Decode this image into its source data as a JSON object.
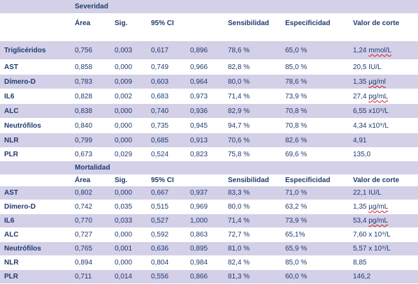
{
  "sections": [
    {
      "title": "Severidad",
      "headers": [
        "Área",
        "Sig.",
        "95% CI",
        "Sensibilidad",
        "Especificidad",
        "Valor de corte"
      ],
      "rows": [
        {
          "label": "Triglicéridos",
          "area": "0,756",
          "sig": "0,003",
          "ci_low": "0,617",
          "ci_high": "0,896",
          "sens": "78,6 %",
          "spec": "65,0 %",
          "cutoff": "1,24 mmol/L"
        },
        {
          "label": "AST",
          "area": "0,858",
          "sig": "0,000",
          "ci_low": "0,749",
          "ci_high": "0,966",
          "sens": "82,8 %",
          "spec": "85,0 %",
          "cutoff": "20,5 IU/L"
        },
        {
          "label": "Dímero-D",
          "area": "0,783",
          "sig": "0,009",
          "ci_low": "0,603",
          "ci_high": "0,964",
          "sens": "80,0 %",
          "spec": "78,6 %",
          "cutoff": "1,35 µg/ml"
        },
        {
          "label": "IL6",
          "area": "0,828",
          "sig": "0,002",
          "ci_low": "0,683",
          "ci_high": "0,973",
          "sens": "71,4 %",
          "spec": "73,9 %",
          "cutoff": "27,4 pg/mL"
        },
        {
          "label": "ALC",
          "area": "0,838",
          "sig": "0,000",
          "ci_low": "0,740",
          "ci_high": "0,936",
          "sens": "82,9 %",
          "spec": "70,8 %",
          "cutoff": "6,55 x10⁹/L"
        },
        {
          "label": "Neutrófilos",
          "area": "0,840",
          "sig": "0,000",
          "ci_low": "0,735",
          "ci_high": "0,945",
          "sens": "94,7 %",
          "spec": "70,8 %",
          "cutoff": "4,34 x10⁹/L"
        },
        {
          "label": "NLR",
          "area": "0,799",
          "sig": "0,000",
          "ci_low": "0,685",
          "ci_high": "0,913",
          "sens": "70,6 %",
          "spec": "82,6 %",
          "cutoff": "4,91"
        },
        {
          "label": "PLR",
          "area": "0,673",
          "sig": "0,029",
          "ci_low": "0,524",
          "ci_high": "0,823",
          "sens": "75,8 %",
          "spec": "69,6 %",
          "cutoff": "135,0"
        }
      ]
    },
    {
      "title": "Mortalidad",
      "headers": [
        "Área",
        "Sig.",
        "95% CI",
        "Sensibilidad",
        "Especificidad",
        "Valor de corte"
      ],
      "rows": [
        {
          "label": "AST",
          "area": "0,802",
          "sig": "0,000",
          "ci_low": "0,667",
          "ci_high": "0,937",
          "sens": "83,3 %",
          "spec": "71,0 %",
          "cutoff": "22,1 IU/L"
        },
        {
          "label": "Dímero-D",
          "area": "0,742",
          "sig": "0,035",
          "ci_low": "0,515",
          "ci_high": "0,969",
          "sens": "80,0 %",
          "spec": "63,2 %",
          "cutoff": "1,35 µg/mL"
        },
        {
          "label": "IL6",
          "area": "0,770",
          "sig": "0,033",
          "ci_low": "0,527",
          "ci_high": "1,000",
          "sens": "71,4 %",
          "spec": "73,9 %",
          "cutoff": "53,4 pg/mL"
        },
        {
          "label": "ALC",
          "area": "0,727",
          "sig": "0,000",
          "ci_low": "0,592",
          "ci_high": "0,863",
          "sens": "72,7 %",
          "spec": "65,1%",
          "cutoff": "7,60 x 10⁹/L"
        },
        {
          "label": "Neutrófilos",
          "area": "0,765",
          "sig": "0,001",
          "ci_low": "0,636",
          "ci_high": "0,895",
          "sens": "81,0 %",
          "spec": "65,9 %",
          "cutoff": "5,57 x 10⁹/L"
        },
        {
          "label": "NLR",
          "area": "0,894",
          "sig": "0,000",
          "ci_low": "0,804",
          "ci_high": "0,984",
          "sens": "82,4 %",
          "spec": "85,0 %",
          "cutoff": "8,85"
        },
        {
          "label": "PLR",
          "area": "0,711",
          "sig": "0,014",
          "ci_low": "0,556",
          "ci_high": "0,866",
          "sens": "81,3 %",
          "spec": "60,0 %",
          "cutoff": "146,2"
        }
      ]
    }
  ]
}
